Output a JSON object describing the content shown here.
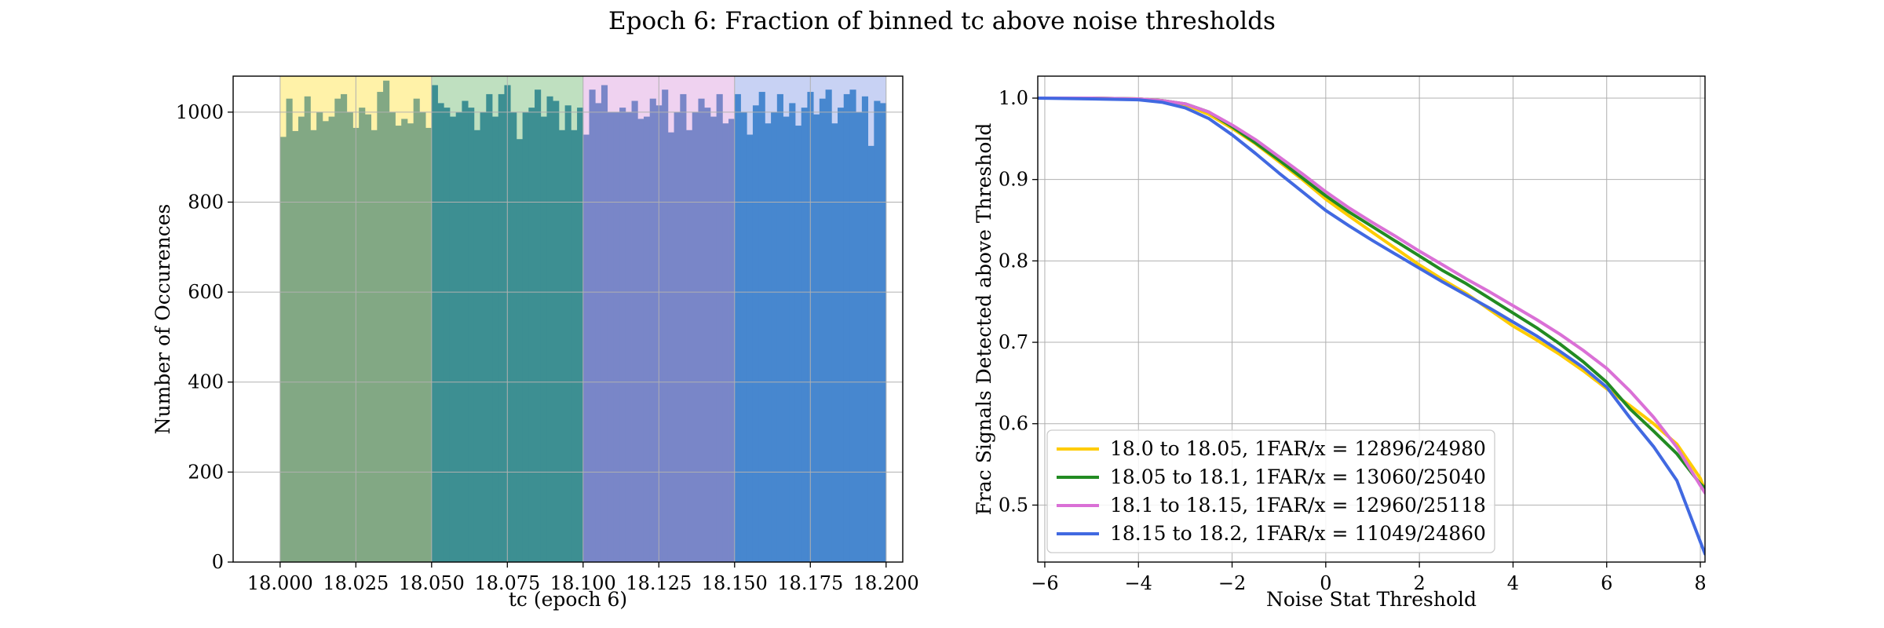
{
  "figure": {
    "title": "Epoch 6: Fraction of binned tc above noise thresholds"
  },
  "chart_data": [
    {
      "type": "bar",
      "subtype": "histogram",
      "xlabel": "tc (epoch 6)",
      "ylabel": "Number of Occurences",
      "xlim": [
        17.9845,
        18.2055
      ],
      "ylim": [
        0,
        1080
      ],
      "xticks": [
        18.0,
        18.025,
        18.05,
        18.075,
        18.1,
        18.125,
        18.15,
        18.175,
        18.2
      ],
      "xtick_labels": [
        "18.000",
        "18.025",
        "18.050",
        "18.075",
        "18.100",
        "18.125",
        "18.150",
        "18.175",
        "18.200"
      ],
      "yticks": [
        0,
        200,
        400,
        600,
        800,
        1000
      ],
      "ytick_labels": [
        "0",
        "200",
        "400",
        "600",
        "800",
        "1000"
      ],
      "grid": true,
      "bin_width": 0.002,
      "bands": [
        {
          "x0": 18.0,
          "x1": 18.05,
          "color": "#fff2a8"
        },
        {
          "x0": 18.05,
          "x1": 18.1,
          "color": "#bfe0c0"
        },
        {
          "x0": 18.1,
          "x1": 18.15,
          "color": "#efd2f0"
        },
        {
          "x0": 18.15,
          "x1": 18.2,
          "color": "#c8d2f4"
        }
      ],
      "series": [
        {
          "x0": 18.0,
          "x1": 18.05,
          "color": "#82a884",
          "values": [
            945,
            1030,
            958,
            990,
            1035,
            960,
            1000,
            980,
            990,
            1030,
            1040,
            1000,
            965,
            1010,
            995,
            960,
            1045,
            1070,
            1000,
            970,
            985,
            975,
            1030,
            1000,
            965
          ]
        },
        {
          "x0": 18.05,
          "x1": 18.1,
          "color": "#3d8f92",
          "values": [
            1060,
            1020,
            1010,
            990,
            1000,
            1025,
            1010,
            960,
            1000,
            1040,
            990,
            1040,
            1060,
            1000,
            940,
            1000,
            1010,
            1050,
            990,
            1035,
            1025,
            960,
            1015,
            960,
            1010
          ]
        },
        {
          "x0": 18.1,
          "x1": 18.15,
          "color": "#7986c8",
          "values": [
            950,
            1050,
            1020,
            1060,
            1000,
            1000,
            1010,
            1000,
            1025,
            985,
            990,
            1030,
            1015,
            1050,
            955,
            1000,
            1040,
            960,
            1000,
            1030,
            1010,
            990,
            1040,
            975,
            985
          ]
        },
        {
          "x0": 18.15,
          "x1": 18.2,
          "color": "#4787cf",
          "values": [
            1040,
            1000,
            950,
            1015,
            1045,
            975,
            1000,
            1040,
            990,
            1020,
            970,
            1010,
            1045,
            995,
            1030,
            1050,
            975,
            1010,
            1040,
            1050,
            1000,
            1035,
            925,
            1025,
            1020
          ]
        }
      ]
    },
    {
      "type": "line",
      "xlabel": "Noise Stat Threshold",
      "ylabel": "Frac Signals Detected above Threshold",
      "xlim": [
        -6.15,
        8.1
      ],
      "ylim": [
        0.43,
        1.027
      ],
      "xticks": [
        -6,
        -4,
        -2,
        0,
        2,
        4,
        6,
        8
      ],
      "xtick_labels": [
        "−6",
        "−4",
        "−2",
        "0",
        "2",
        "4",
        "6",
        "8"
      ],
      "yticks": [
        0.5,
        0.6,
        0.7,
        0.8,
        0.9,
        1.0
      ],
      "ytick_labels": [
        "0.5",
        "0.6",
        "0.7",
        "0.8",
        "0.9",
        "1.0"
      ],
      "grid": true,
      "legend_position": "lower-left",
      "series": [
        {
          "name": "18.0 to 18.05, 1FAR/x = 12896/24980",
          "color": "#ffcc00",
          "x": [
            -6.15,
            -5,
            -4,
            -3.5,
            -3,
            -2.5,
            -2,
            -1.5,
            -1,
            -0.5,
            0,
            0.5,
            1,
            1.5,
            2,
            2.5,
            3,
            3.5,
            4,
            4.5,
            5,
            5.5,
            6,
            6.5,
            7,
            7.5,
            8,
            8.1
          ],
          "y": [
            1.0,
            1.0,
            0.999,
            0.997,
            0.992,
            0.98,
            0.963,
            0.944,
            0.922,
            0.9,
            0.876,
            0.855,
            0.835,
            0.815,
            0.795,
            0.777,
            0.76,
            0.74,
            0.72,
            0.703,
            0.685,
            0.665,
            0.643,
            0.622,
            0.6,
            0.575,
            0.533,
            0.518
          ]
        },
        {
          "name": "18.05 to 18.1, 1FAR/x = 13060/25040",
          "color": "#228b22",
          "x": [
            -6.15,
            -5,
            -4,
            -3.5,
            -3,
            -2.5,
            -2,
            -1.5,
            -1,
            -0.5,
            0,
            0.5,
            1,
            1.5,
            2,
            2.5,
            3,
            3.5,
            4,
            4.5,
            5,
            5.5,
            6,
            6.5,
            7,
            7.5,
            8,
            8.1
          ],
          "y": [
            1.0,
            1.0,
            0.999,
            0.997,
            0.993,
            0.983,
            0.965,
            0.945,
            0.924,
            0.902,
            0.88,
            0.86,
            0.842,
            0.824,
            0.806,
            0.788,
            0.772,
            0.754,
            0.736,
            0.718,
            0.698,
            0.676,
            0.651,
            0.618,
            0.591,
            0.563,
            0.526,
            0.521
          ]
        },
        {
          "name": "18.1 to 18.15, 1FAR/x = 12960/25118",
          "color": "#da70d6",
          "x": [
            -6.15,
            -5,
            -4,
            -3.5,
            -3,
            -2.5,
            -2,
            -1.5,
            -1,
            -0.5,
            0,
            0.5,
            1,
            1.5,
            2,
            2.5,
            3,
            3.5,
            4,
            4.5,
            5,
            5.5,
            6,
            6.5,
            7,
            7.5,
            8,
            8.1
          ],
          "y": [
            1.0,
            1.0,
            0.999,
            0.997,
            0.993,
            0.983,
            0.967,
            0.949,
            0.928,
            0.907,
            0.885,
            0.865,
            0.847,
            0.83,
            0.812,
            0.795,
            0.778,
            0.762,
            0.745,
            0.728,
            0.71,
            0.69,
            0.668,
            0.64,
            0.608,
            0.571,
            0.524,
            0.515
          ]
        },
        {
          "name": "18.15 to 18.2, 1FAR/x = 11049/24860",
          "color": "#4169e1",
          "x": [
            -6.15,
            -5,
            -4,
            -3.5,
            -3,
            -2.5,
            -2,
            -1.5,
            -1,
            -0.5,
            0,
            0.5,
            1,
            1.5,
            2,
            2.5,
            3,
            3.5,
            4,
            4.5,
            5,
            5.5,
            6,
            6.5,
            7,
            7.5,
            8,
            8.1
          ],
          "y": [
            1.0,
            0.999,
            0.998,
            0.995,
            0.988,
            0.975,
            0.955,
            0.932,
            0.908,
            0.885,
            0.862,
            0.843,
            0.825,
            0.808,
            0.791,
            0.774,
            0.758,
            0.742,
            0.725,
            0.708,
            0.689,
            0.669,
            0.645,
            0.607,
            0.572,
            0.53,
            0.455,
            0.44
          ]
        }
      ]
    }
  ]
}
